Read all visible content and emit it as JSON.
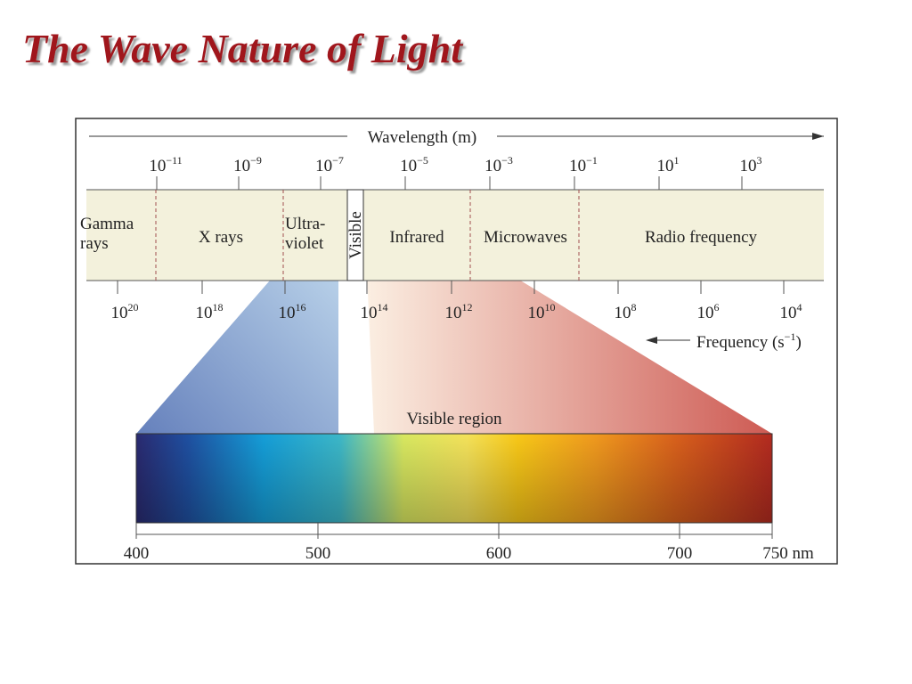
{
  "header": {
    "title": "The Wave Nature of Light"
  },
  "diagram": {
    "wavelength_label": "Wavelength (m)",
    "wavelength_ticks": [
      {
        "base": "10",
        "exp": "−11"
      },
      {
        "base": "10",
        "exp": "−9"
      },
      {
        "base": "10",
        "exp": "−7"
      },
      {
        "base": "10",
        "exp": "−5"
      },
      {
        "base": "10",
        "exp": "−3"
      },
      {
        "base": "10",
        "exp": "−1"
      },
      {
        "base": "10",
        "exp": "1"
      },
      {
        "base": "10",
        "exp": "3"
      }
    ],
    "regions": [
      [
        "Gamma",
        "rays"
      ],
      [
        "X rays"
      ],
      [
        "Ultra-",
        "violet"
      ],
      [
        "Visible"
      ],
      [
        "Infrared"
      ],
      [
        "Microwaves"
      ],
      [
        "Radio frequency"
      ]
    ],
    "frequency_ticks": [
      {
        "base": "10",
        "exp": "20"
      },
      {
        "base": "10",
        "exp": "18"
      },
      {
        "base": "10",
        "exp": "16"
      },
      {
        "base": "10",
        "exp": "14"
      },
      {
        "base": "10",
        "exp": "12"
      },
      {
        "base": "10",
        "exp": "10"
      },
      {
        "base": "10",
        "exp": "8"
      },
      {
        "base": "10",
        "exp": "6"
      },
      {
        "base": "10",
        "exp": "4"
      }
    ],
    "frequency_label": {
      "text": "Frequency (s",
      "exp": "−1",
      "close": ")"
    },
    "visible_label": "Visible region",
    "visible_ticks": [
      "400",
      "500",
      "600",
      "700",
      "750 nm"
    ]
  }
}
